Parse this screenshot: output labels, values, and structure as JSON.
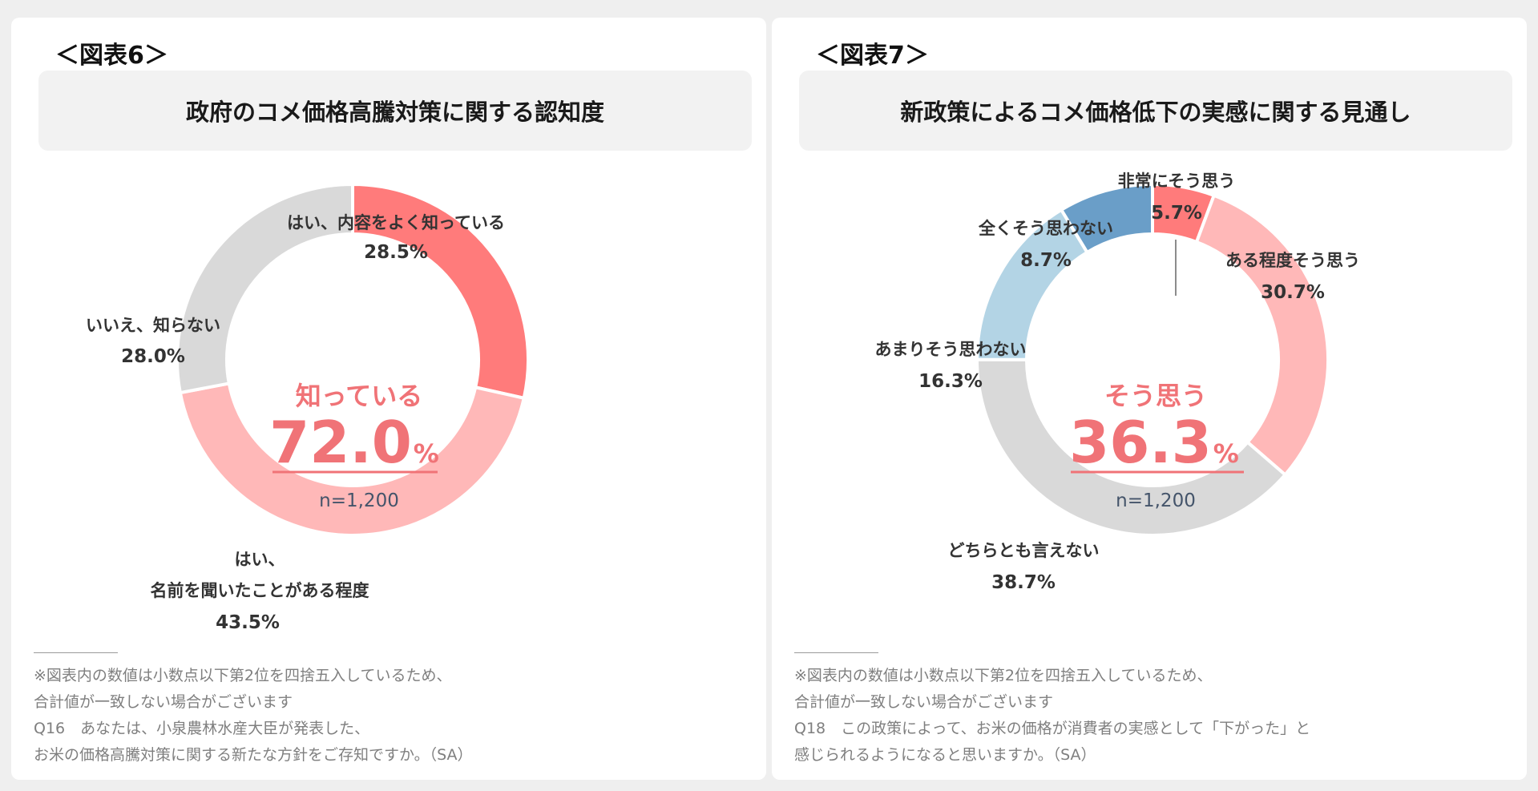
{
  "chart_data": [
    {
      "type": "donut",
      "figure_label": "＜図表6＞",
      "title": "政府のコメ価格高騰対策に関する認知度",
      "center": {
        "label": "知っている",
        "value": "72.0",
        "unit": "%",
        "n": "n=1,200"
      },
      "slices": [
        {
          "label_lines": [
            "はい、内容をよく知っている"
          ],
          "value": 28.5,
          "value_text": "28.5%",
          "color": "#ff7b7b"
        },
        {
          "label_lines": [
            "はい、",
            "名前を聞いたことがある程度"
          ],
          "value": 43.5,
          "value_text": "43.5%",
          "color": "#ffb8b8"
        },
        {
          "label_lines": [
            "いいえ、知らない"
          ],
          "value": 28.0,
          "value_text": "28.0%",
          "color": "#d9d9d9"
        }
      ],
      "footnotes": [
        "※図表内の数値は小数点以下第2位を四捨五入しているため、",
        "合計値が一致しない場合がございます",
        "Q16　あなたは、小泉農林水産大臣が発表した、",
        "お米の価格高騰対策に関する新たな方針をご存知ですか。（SA）"
      ]
    },
    {
      "type": "donut",
      "figure_label": "＜図表7＞",
      "title": "新政策によるコメ価格低下の実感に関する見通し",
      "center": {
        "label": "そう思う",
        "value": "36.3",
        "unit": "%",
        "n": "n=1,200"
      },
      "slices": [
        {
          "label_lines": [
            "非常にそう思う"
          ],
          "value": 5.7,
          "value_text": "5.7%",
          "color": "#ff7b7b"
        },
        {
          "label_lines": [
            "ある程度そう思う"
          ],
          "value": 30.7,
          "value_text": "30.7%",
          "color": "#ffb8b8"
        },
        {
          "label_lines": [
            "どちらとも言えない"
          ],
          "value": 38.7,
          "value_text": "38.7%",
          "color": "#d9d9d9"
        },
        {
          "label_lines": [
            "あまりそう思わない"
          ],
          "value": 16.3,
          "value_text": "16.3%",
          "color": "#b3d4e5"
        },
        {
          "label_lines": [
            "全くそう思わない"
          ],
          "value": 8.7,
          "value_text": "8.7%",
          "color": "#6a9ec8"
        }
      ],
      "footnotes": [
        "※図表内の数値は小数点以下第2位を四捨五入しているため、",
        "合計値が一致しない場合がございます",
        "Q18　この政策によって、お米の価格が消費者の実感として「下がった」と",
        "感じられるようになると思いますか。（SA）"
      ]
    }
  ]
}
